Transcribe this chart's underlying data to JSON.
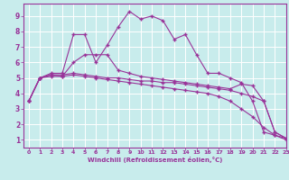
{
  "xlabel": "Windchill (Refroidissement éolien,°C)",
  "background_color": "#c8ecec",
  "line_color": "#993399",
  "xlim": [
    -0.5,
    23
  ],
  "ylim": [
    0.5,
    9.8
  ],
  "xticks": [
    0,
    1,
    2,
    3,
    4,
    5,
    6,
    7,
    8,
    9,
    10,
    11,
    12,
    13,
    14,
    15,
    16,
    17,
    18,
    19,
    20,
    21,
    22,
    23
  ],
  "yticks": [
    1,
    2,
    3,
    4,
    5,
    6,
    7,
    8,
    9
  ],
  "series": [
    {
      "x": [
        0,
        1,
        2,
        3,
        4,
        5,
        6,
        7,
        8,
        9,
        10,
        11,
        12,
        13,
        14,
        15,
        16,
        17,
        18,
        19,
        20,
        21,
        22,
        23
      ],
      "y": [
        3.5,
        5.0,
        5.3,
        5.3,
        7.8,
        7.8,
        6.0,
        7.1,
        8.3,
        9.3,
        8.8,
        9.0,
        8.7,
        7.5,
        7.8,
        6.5,
        5.3,
        5.3,
        5.0,
        4.7,
        3.5,
        1.5,
        1.3,
        1.1
      ]
    },
    {
      "x": [
        0,
        1,
        2,
        3,
        4,
        5,
        6,
        7,
        8,
        9,
        10,
        11,
        12,
        13,
        14,
        15,
        16,
        17,
        18,
        19,
        20,
        21,
        22,
        23
      ],
      "y": [
        3.5,
        5.0,
        5.2,
        5.1,
        6.0,
        6.5,
        6.5,
        6.5,
        5.5,
        5.3,
        5.1,
        5.0,
        4.9,
        4.8,
        4.7,
        4.6,
        4.5,
        4.4,
        4.3,
        4.6,
        4.5,
        3.5,
        1.5,
        1.1
      ]
    },
    {
      "x": [
        0,
        1,
        2,
        3,
        4,
        5,
        6,
        7,
        8,
        9,
        10,
        11,
        12,
        13,
        14,
        15,
        16,
        17,
        18,
        19,
        20,
        21,
        22,
        23
      ],
      "y": [
        3.5,
        5.0,
        5.2,
        5.2,
        5.3,
        5.2,
        5.1,
        5.0,
        5.0,
        4.9,
        4.8,
        4.8,
        4.7,
        4.7,
        4.6,
        4.5,
        4.4,
        4.3,
        4.2,
        4.0,
        3.8,
        3.5,
        1.5,
        1.1
      ]
    },
    {
      "x": [
        0,
        1,
        2,
        3,
        4,
        5,
        6,
        7,
        8,
        9,
        10,
        11,
        12,
        13,
        14,
        15,
        16,
        17,
        18,
        19,
        20,
        21,
        22,
        23
      ],
      "y": [
        3.5,
        5.0,
        5.1,
        5.1,
        5.2,
        5.1,
        5.0,
        4.9,
        4.8,
        4.7,
        4.6,
        4.5,
        4.4,
        4.3,
        4.2,
        4.1,
        4.0,
        3.8,
        3.5,
        3.0,
        2.5,
        1.8,
        1.3,
        1.0
      ]
    }
  ]
}
